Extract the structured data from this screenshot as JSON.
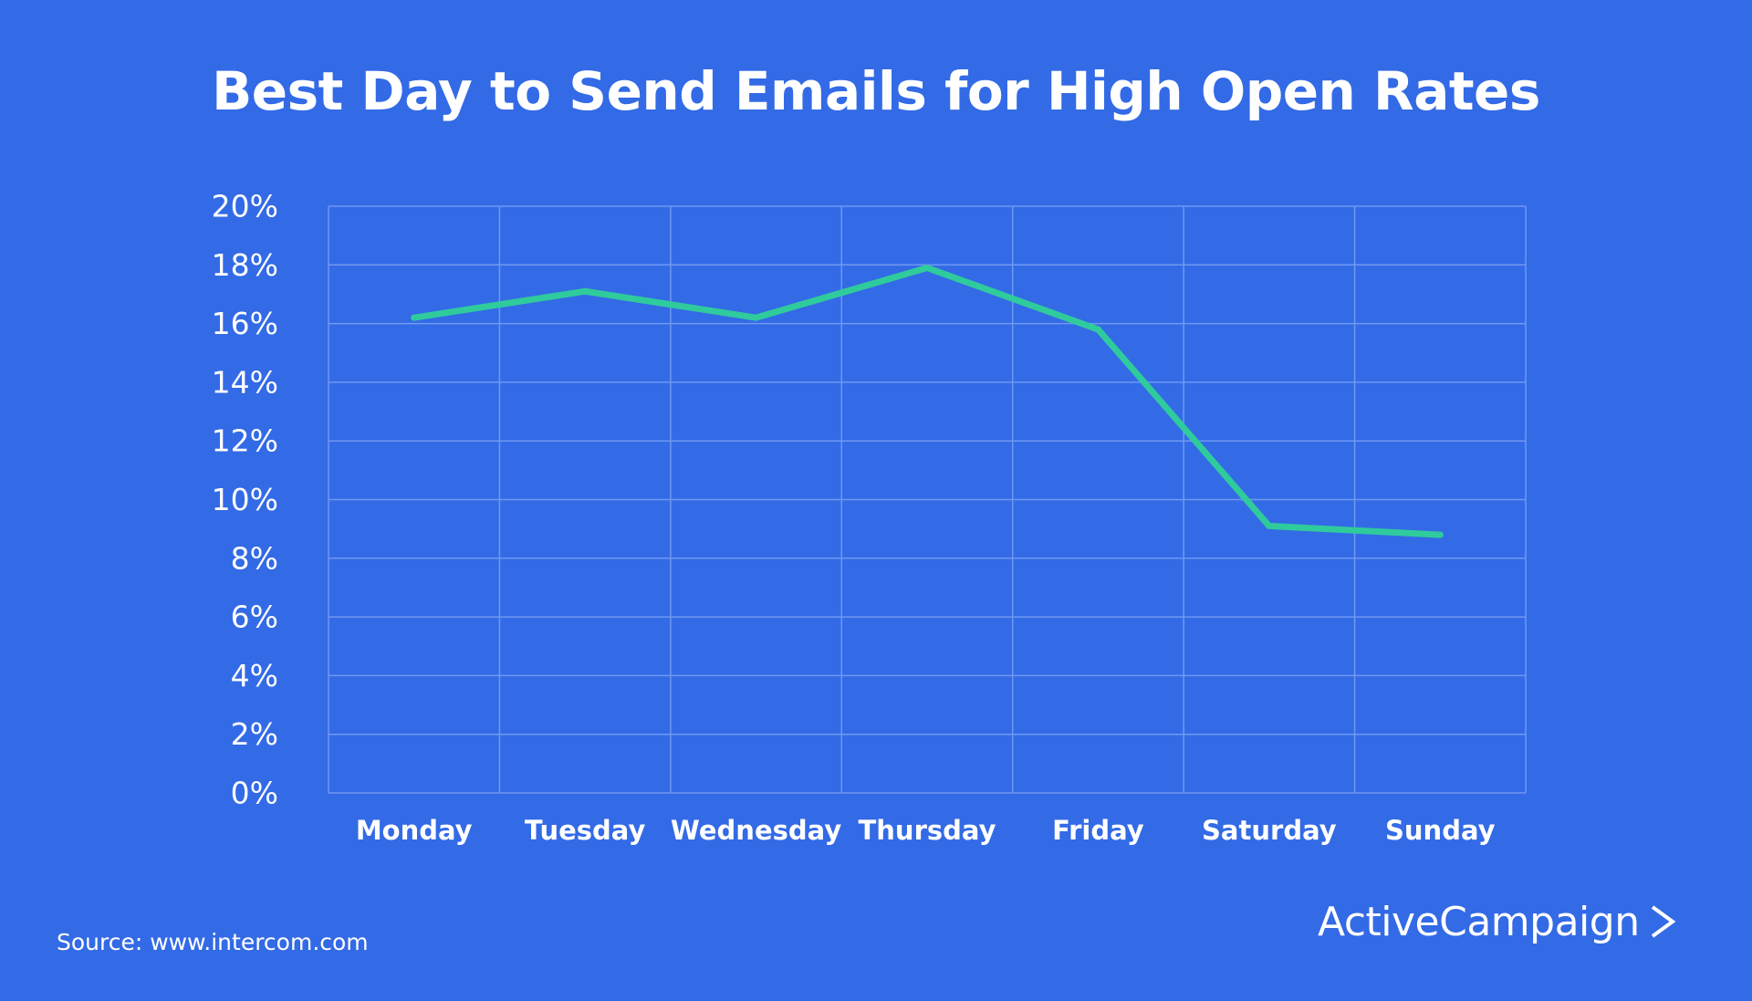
{
  "colors": {
    "background": "#336ae6",
    "line": "#2fcb9c",
    "grid": "#6f98f0",
    "text": "#ffffff"
  },
  "title": "Best Day to Send Emails for High Open Rates",
  "source": "Source: www.intercom.com",
  "brand": {
    "name": "ActiveCampaign",
    "icon": "chevron-right-icon"
  },
  "chart_data": {
    "type": "line",
    "title": "Best Day to Send Emails for High Open Rates",
    "xlabel": "",
    "ylabel": "",
    "categories": [
      "Monday",
      "Tuesday",
      "Wednesday",
      "Thursday",
      "Friday",
      "Saturday",
      "Sunday"
    ],
    "series": [
      {
        "values": [
          16.2,
          17.1,
          16.2,
          17.9,
          15.8,
          9.1,
          8.8
        ]
      }
    ],
    "ylim": [
      0,
      20
    ],
    "yticks": [
      "0%",
      "2%",
      "4%",
      "6%",
      "8%",
      "10%",
      "12%",
      "14%",
      "16%",
      "18%",
      "20%"
    ],
    "grid": true,
    "legend": "none"
  }
}
